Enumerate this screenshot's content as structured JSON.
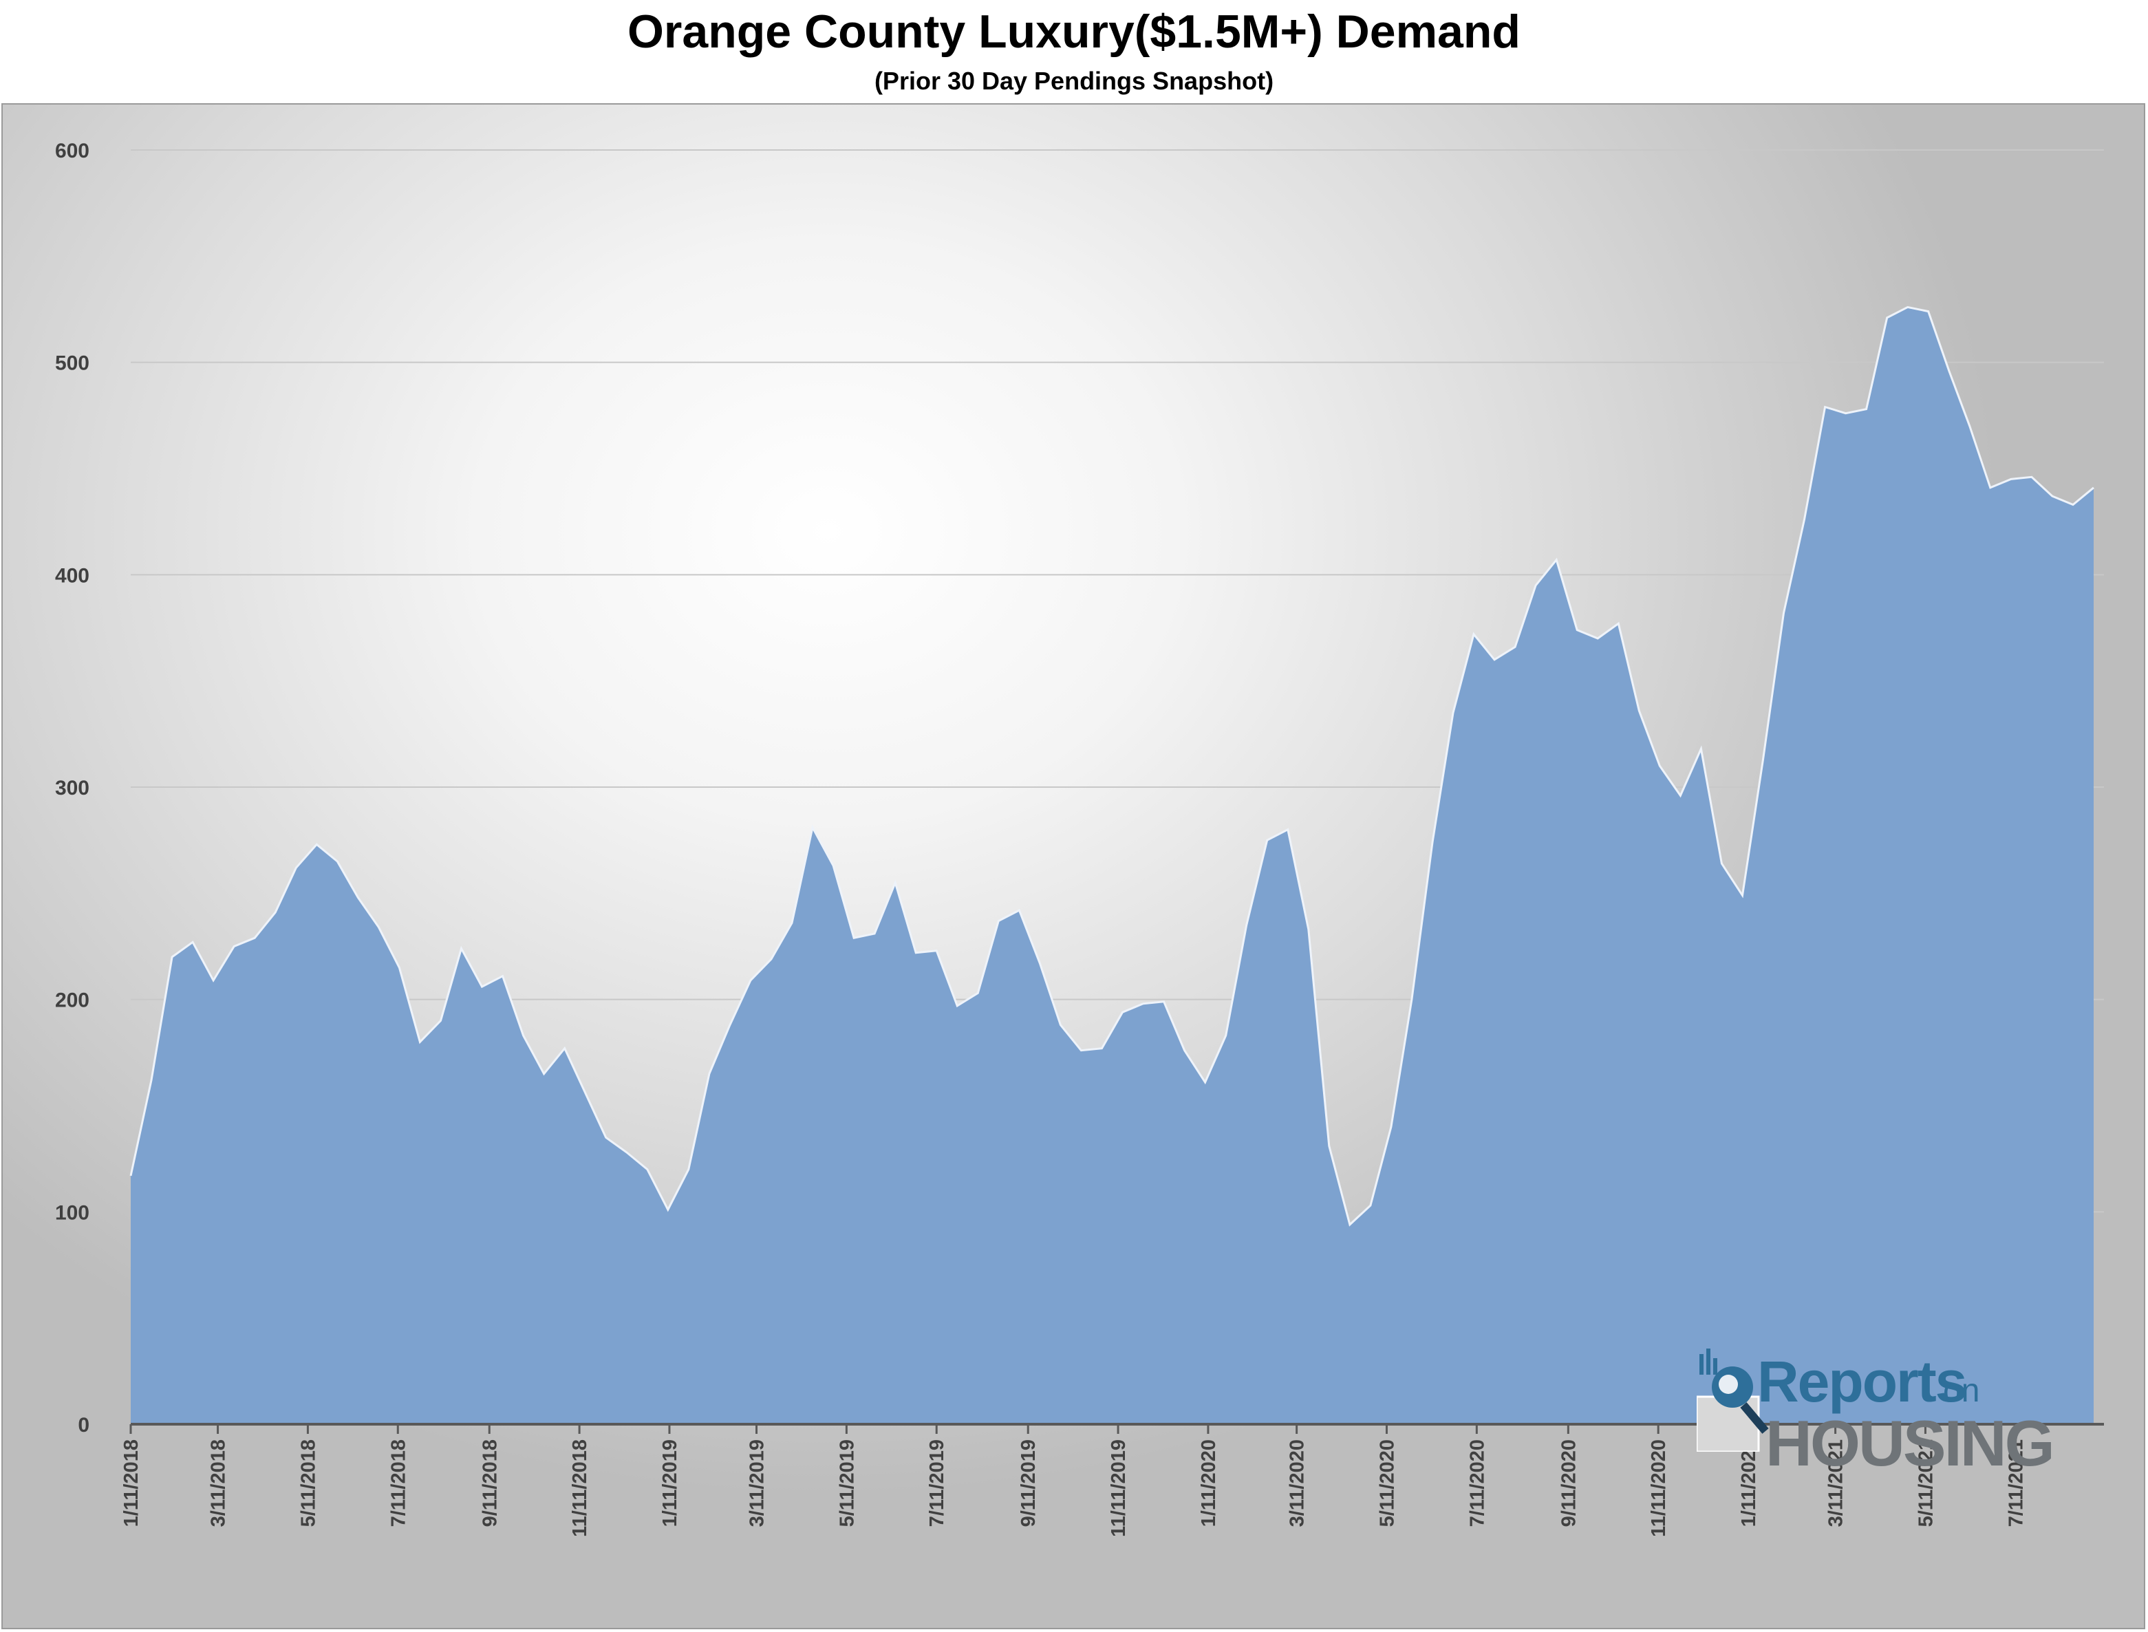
{
  "title": "Orange County Luxury($1.5M+) Demand",
  "subtitle": "(Prior 30 Day Pendings Snapshot)",
  "logo": {
    "line1": "Reports",
    "line1_small": "on",
    "line2": "HOUSING"
  },
  "colors": {
    "area_fill": "#7da2cf",
    "area_stroke": "#eef3fa",
    "axis": "#595959",
    "grid": "#c8c8c8",
    "tick_text": "#404040"
  },
  "chart_data": {
    "type": "area",
    "title": "Orange County Luxury($1.5M+) Demand",
    "subtitle": "(Prior 30 Day Pendings Snapshot)",
    "xlabel": "",
    "ylabel": "",
    "ylim": [
      0,
      600
    ],
    "yticks": [
      0,
      100,
      200,
      300,
      400,
      500,
      600
    ],
    "grid": true,
    "xtick_labels": [
      "1/11/2018",
      "3/11/2018",
      "5/11/2018",
      "7/11/2018",
      "9/11/2018",
      "11/11/2018",
      "1/11/2019",
      "3/11/2019",
      "5/11/2019",
      "7/11/2019",
      "9/11/2019",
      "11/11/2019",
      "1/11/2020",
      "3/11/2020",
      "5/11/2020",
      "7/11/2020",
      "9/11/2020",
      "11/11/2020",
      "1/11/2021",
      "3/11/2021",
      "5/11/2021",
      "7/11/2021"
    ],
    "x_range": [
      "1/11/2018",
      "9/9/2021"
    ],
    "series": [
      {
        "values": [
          {
            "x": "2018-01-11",
            "y": 117
          },
          {
            "x": "2018-01-25",
            "y": 162
          },
          {
            "x": "2018-02-08",
            "y": 220
          },
          {
            "x": "2018-02-22",
            "y": 227
          },
          {
            "x": "2018-03-08",
            "y": 209
          },
          {
            "x": "2018-03-22",
            "y": 225
          },
          {
            "x": "2018-04-05",
            "y": 229
          },
          {
            "x": "2018-04-19",
            "y": 241
          },
          {
            "x": "2018-05-03",
            "y": 262
          },
          {
            "x": "2018-05-17",
            "y": 273
          },
          {
            "x": "2018-05-31",
            "y": 265
          },
          {
            "x": "2018-06-14",
            "y": 248
          },
          {
            "x": "2018-06-28",
            "y": 234
          },
          {
            "x": "2018-07-12",
            "y": 215
          },
          {
            "x": "2018-07-26",
            "y": 180
          },
          {
            "x": "2018-08-09",
            "y": 190
          },
          {
            "x": "2018-08-23",
            "y": 224
          },
          {
            "x": "2018-09-06",
            "y": 206
          },
          {
            "x": "2018-09-20",
            "y": 211
          },
          {
            "x": "2018-10-04",
            "y": 183
          },
          {
            "x": "2018-10-18",
            "y": 165
          },
          {
            "x": "2018-11-01",
            "y": 177
          },
          {
            "x": "2018-11-15",
            "y": 156
          },
          {
            "x": "2018-11-29",
            "y": 135
          },
          {
            "x": "2018-12-13",
            "y": 128
          },
          {
            "x": "2018-12-27",
            "y": 120
          },
          {
            "x": "2019-01-10",
            "y": 101
          },
          {
            "x": "2019-01-24",
            "y": 120
          },
          {
            "x": "2019-02-07",
            "y": 165
          },
          {
            "x": "2019-02-21",
            "y": 188
          },
          {
            "x": "2019-03-07",
            "y": 209
          },
          {
            "x": "2019-03-21",
            "y": 219
          },
          {
            "x": "2019-04-04",
            "y": 236
          },
          {
            "x": "2019-04-18",
            "y": 281
          },
          {
            "x": "2019-05-02",
            "y": 263
          },
          {
            "x": "2019-05-16",
            "y": 229
          },
          {
            "x": "2019-05-30",
            "y": 231
          },
          {
            "x": "2019-06-13",
            "y": 255
          },
          {
            "x": "2019-06-27",
            "y": 222
          },
          {
            "x": "2019-07-11",
            "y": 223
          },
          {
            "x": "2019-07-25",
            "y": 197
          },
          {
            "x": "2019-08-08",
            "y": 203
          },
          {
            "x": "2019-08-22",
            "y": 237
          },
          {
            "x": "2019-09-05",
            "y": 242
          },
          {
            "x": "2019-09-19",
            "y": 217
          },
          {
            "x": "2019-10-03",
            "y": 188
          },
          {
            "x": "2019-10-17",
            "y": 176
          },
          {
            "x": "2019-10-31",
            "y": 177
          },
          {
            "x": "2019-11-14",
            "y": 194
          },
          {
            "x": "2019-11-28",
            "y": 198
          },
          {
            "x": "2019-12-12",
            "y": 199
          },
          {
            "x": "2019-12-26",
            "y": 176
          },
          {
            "x": "2020-01-09",
            "y": 161
          },
          {
            "x": "2020-01-23",
            "y": 183
          },
          {
            "x": "2020-02-06",
            "y": 235
          },
          {
            "x": "2020-02-20",
            "y": 275
          },
          {
            "x": "2020-03-05",
            "y": 280
          },
          {
            "x": "2020-03-19",
            "y": 233
          },
          {
            "x": "2020-04-02",
            "y": 131
          },
          {
            "x": "2020-04-16",
            "y": 94
          },
          {
            "x": "2020-04-30",
            "y": 103
          },
          {
            "x": "2020-05-14",
            "y": 140
          },
          {
            "x": "2020-05-28",
            "y": 200
          },
          {
            "x": "2020-06-11",
            "y": 274
          },
          {
            "x": "2020-06-25",
            "y": 335
          },
          {
            "x": "2020-07-09",
            "y": 372
          },
          {
            "x": "2020-07-23",
            "y": 360
          },
          {
            "x": "2020-08-06",
            "y": 366
          },
          {
            "x": "2020-08-20",
            "y": 395
          },
          {
            "x": "2020-09-03",
            "y": 407
          },
          {
            "x": "2020-09-17",
            "y": 374
          },
          {
            "x": "2020-10-01",
            "y": 370
          },
          {
            "x": "2020-10-15",
            "y": 377
          },
          {
            "x": "2020-10-29",
            "y": 336
          },
          {
            "x": "2020-11-12",
            "y": 310
          },
          {
            "x": "2020-11-26",
            "y": 296
          },
          {
            "x": "2020-12-10",
            "y": 318
          },
          {
            "x": "2020-12-24",
            "y": 264
          },
          {
            "x": "2021-01-07",
            "y": 249
          },
          {
            "x": "2021-01-21",
            "y": 313
          },
          {
            "x": "2021-02-04",
            "y": 382
          },
          {
            "x": "2021-02-18",
            "y": 426
          },
          {
            "x": "2021-03-04",
            "y": 479
          },
          {
            "x": "2021-03-18",
            "y": 476
          },
          {
            "x": "2021-04-01",
            "y": 478
          },
          {
            "x": "2021-04-15",
            "y": 521
          },
          {
            "x": "2021-04-29",
            "y": 526
          },
          {
            "x": "2021-05-13",
            "y": 524
          },
          {
            "x": "2021-05-27",
            "y": 496
          },
          {
            "x": "2021-06-10",
            "y": 470
          },
          {
            "x": "2021-06-24",
            "y": 441
          },
          {
            "x": "2021-07-08",
            "y": 445
          },
          {
            "x": "2021-07-22",
            "y": 446
          },
          {
            "x": "2021-08-05",
            "y": 437
          },
          {
            "x": "2021-08-19",
            "y": 433
          },
          {
            "x": "2021-09-02",
            "y": 441
          }
        ]
      }
    ]
  }
}
